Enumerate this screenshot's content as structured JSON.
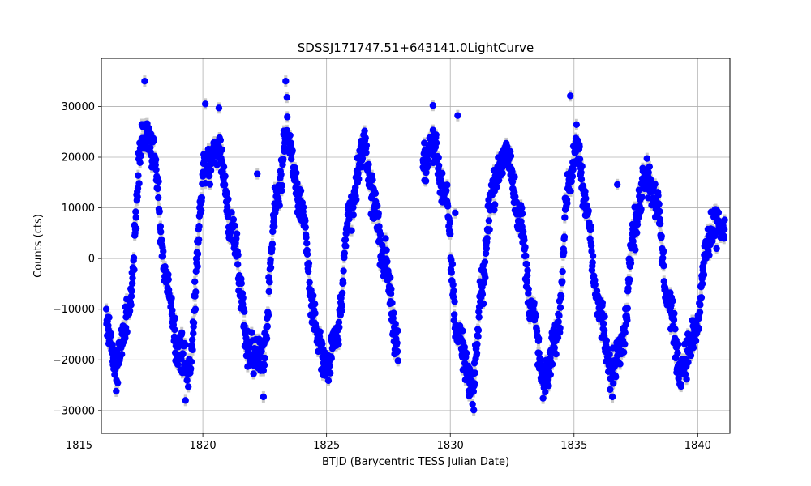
{
  "chart_data": {
    "type": "scatter",
    "title": "SDSSJ171747.51+643141.0LightCurve",
    "xlabel": "BTJD (Barycentric TESS Julian Date)",
    "ylabel": "Counts (cts)",
    "xlim": [
      1815.9,
      1841.3
    ],
    "ylim": [
      -34500,
      39500
    ],
    "x_ticks": [
      1815,
      1820,
      1825,
      1830,
      1835,
      1840
    ],
    "x_tick_labels": [
      "1815",
      "1820",
      "1825",
      "1830",
      "1835",
      "1840"
    ],
    "y_ticks": [
      -30000,
      -20000,
      -10000,
      0,
      10000,
      20000,
      30000
    ],
    "y_tick_labels": [
      "−30000",
      "−20000",
      "−10000",
      "0",
      "10000",
      "20000",
      "30000"
    ],
    "grid": true,
    "marker_color": "#0000ff",
    "errorbar_color": "#c8c8c8",
    "period_days": 2.85,
    "x_ranges": [
      [
        1816.1,
        1827.9
      ],
      [
        1828.9,
        1841.1
      ]
    ],
    "anchors": [
      {
        "x": 1816.1,
        "y": -13000
      },
      {
        "x": 1816.5,
        "y": -21000
      },
      {
        "x": 1817.0,
        "y": -10000
      },
      {
        "x": 1817.6,
        "y": 25000
      },
      {
        "x": 1818.0,
        "y": 21000
      },
      {
        "x": 1818.5,
        "y": -3000
      },
      {
        "x": 1819.0,
        "y": -18000
      },
      {
        "x": 1819.4,
        "y": -22000
      },
      {
        "x": 1820.1,
        "y": 18000
      },
      {
        "x": 1820.6,
        "y": 22000
      },
      {
        "x": 1821.2,
        "y": 5000
      },
      {
        "x": 1821.9,
        "y": -18000
      },
      {
        "x": 1822.4,
        "y": -20000
      },
      {
        "x": 1823.0,
        "y": 12000
      },
      {
        "x": 1823.4,
        "y": 24000
      },
      {
        "x": 1824.0,
        "y": 10000
      },
      {
        "x": 1824.5,
        "y": -12000
      },
      {
        "x": 1825.0,
        "y": -22000
      },
      {
        "x": 1825.4,
        "y": -15000
      },
      {
        "x": 1826.0,
        "y": 10000
      },
      {
        "x": 1826.5,
        "y": 22000
      },
      {
        "x": 1826.9,
        "y": 12000
      },
      {
        "x": 1827.3,
        "y": 0
      },
      {
        "x": 1827.9,
        "y": -17000
      },
      {
        "x": 1828.9,
        "y": 18000
      },
      {
        "x": 1829.3,
        "y": 23000
      },
      {
        "x": 1829.8,
        "y": 12000
      },
      {
        "x": 1830.3,
        "y": -15000
      },
      {
        "x": 1830.9,
        "y": -25000
      },
      {
        "x": 1831.3,
        "y": -5000
      },
      {
        "x": 1831.7,
        "y": 14000
      },
      {
        "x": 1832.3,
        "y": 21000
      },
      {
        "x": 1832.8,
        "y": 8000
      },
      {
        "x": 1833.3,
        "y": -10000
      },
      {
        "x": 1833.8,
        "y": -25000
      },
      {
        "x": 1834.3,
        "y": -15000
      },
      {
        "x": 1834.8,
        "y": 15000
      },
      {
        "x": 1835.1,
        "y": 22000
      },
      {
        "x": 1835.5,
        "y": 10000
      },
      {
        "x": 1836.0,
        "y": -10000
      },
      {
        "x": 1836.5,
        "y": -22000
      },
      {
        "x": 1837.0,
        "y": -15000
      },
      {
        "x": 1837.4,
        "y": 5000
      },
      {
        "x": 1837.9,
        "y": 17000
      },
      {
        "x": 1838.3,
        "y": 12000
      },
      {
        "x": 1838.8,
        "y": -8000
      },
      {
        "x": 1839.3,
        "y": -22000
      },
      {
        "x": 1839.9,
        "y": -15000
      },
      {
        "x": 1840.4,
        "y": 3000
      },
      {
        "x": 1840.8,
        "y": 7000
      },
      {
        "x": 1841.1,
        "y": 5000
      }
    ],
    "outliers": [
      {
        "x": 1817.65,
        "y": 35000
      },
      {
        "x": 1819.3,
        "y": -28000
      },
      {
        "x": 1820.1,
        "y": 30500
      },
      {
        "x": 1820.65,
        "y": 29700
      },
      {
        "x": 1822.2,
        "y": 16700
      },
      {
        "x": 1822.45,
        "y": -27300
      },
      {
        "x": 1823.35,
        "y": 35000
      },
      {
        "x": 1823.4,
        "y": 31800
      },
      {
        "x": 1829.3,
        "y": 30200
      },
      {
        "x": 1830.3,
        "y": 28200
      },
      {
        "x": 1830.2,
        "y": 9000
      },
      {
        "x": 1830.95,
        "y": -29900
      },
      {
        "x": 1834.85,
        "y": 32100
      },
      {
        "x": 1836.75,
        "y": 14600
      },
      {
        "x": 1836.55,
        "y": -27300
      },
      {
        "x": 1828.9,
        "y": 18000
      }
    ]
  }
}
